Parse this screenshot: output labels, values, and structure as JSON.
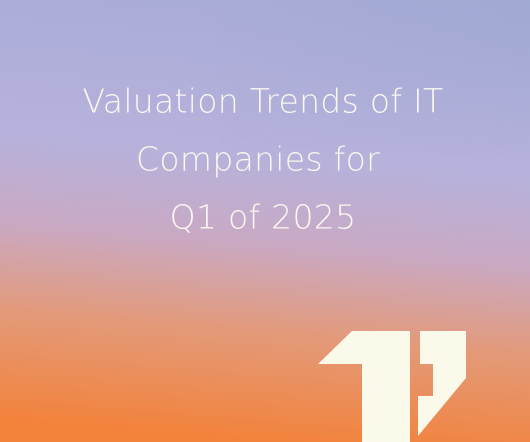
{
  "title": {
    "lines": [
      "Valuation Trends of IT",
      "Companies for",
      "Q1 of 2025"
    ]
  }
}
